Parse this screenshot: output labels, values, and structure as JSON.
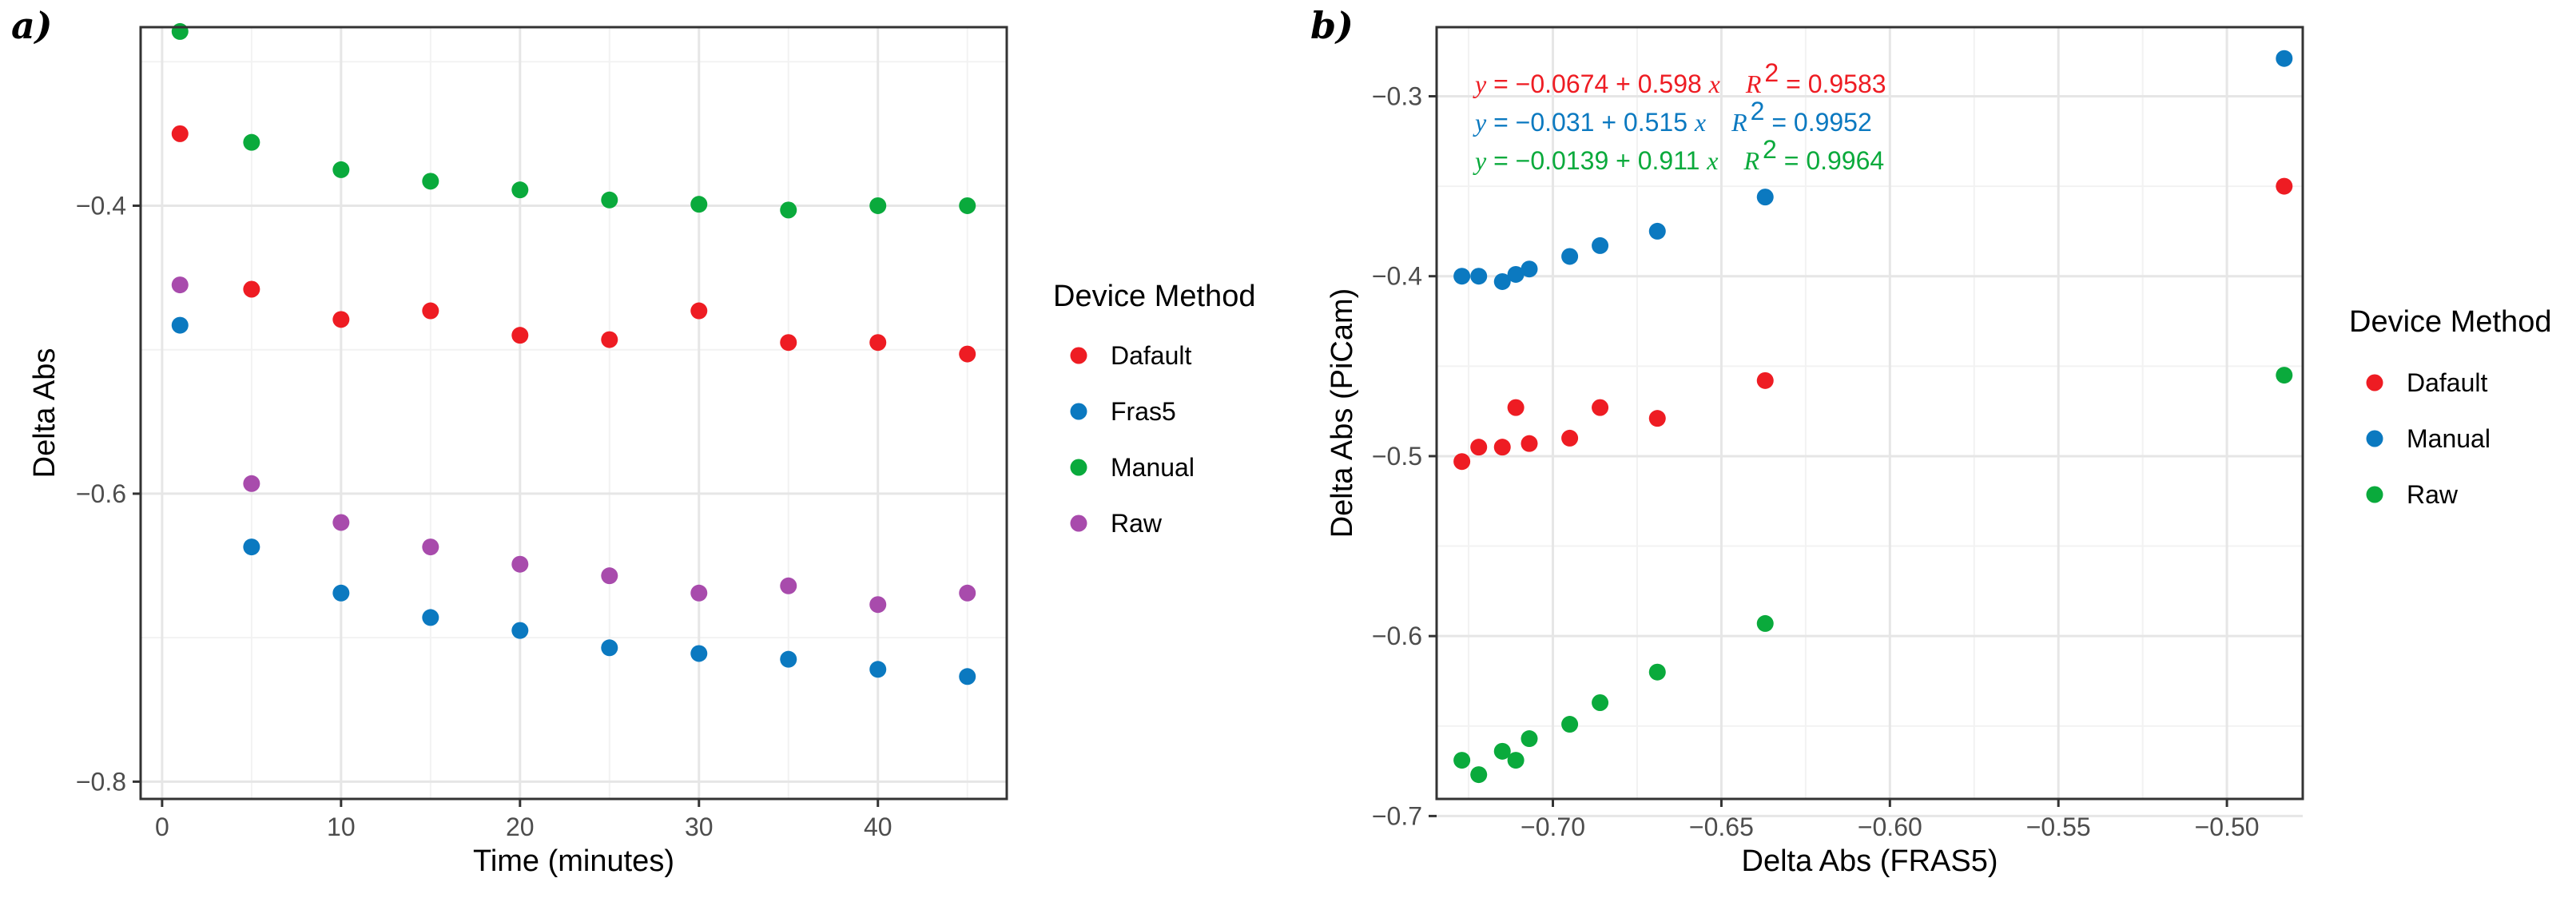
{
  "chart_data": [
    {
      "type": "scatter",
      "panel_label": "a)",
      "xlabel": "Time (minutes)",
      "ylabel": "Delta Abs",
      "xlim": [
        -1.2,
        47.2
      ],
      "ylim": [
        -0.812,
        -0.276
      ],
      "x_ticks": [
        0,
        10,
        20,
        30,
        40
      ],
      "y_ticks": [
        -0.8,
        -0.6,
        -0.4
      ],
      "y_tick_labels": [
        "−0.8",
        "−0.6",
        "−0.4"
      ],
      "grid": true,
      "legend": {
        "title": "Device Method",
        "position": "right"
      },
      "series": [
        {
          "name": "Dafault",
          "color": "#ee1c23",
          "x": [
            1,
            5,
            10,
            15,
            20,
            25,
            30,
            35,
            40,
            45
          ],
          "y": [
            -0.35,
            -0.458,
            -0.479,
            -0.473,
            -0.49,
            -0.493,
            -0.473,
            -0.495,
            -0.495,
            -0.503
          ]
        },
        {
          "name": "Fras5",
          "color": "#0b79c0",
          "x": [
            1,
            5,
            10,
            15,
            20,
            25,
            30,
            35,
            40,
            45
          ],
          "y": [
            -0.483,
            -0.637,
            -0.669,
            -0.686,
            -0.695,
            -0.707,
            -0.711,
            -0.715,
            -0.722,
            -0.727
          ]
        },
        {
          "name": "Manual",
          "color": "#0aaa3c",
          "x": [
            1,
            5,
            10,
            15,
            20,
            25,
            30,
            35,
            40,
            45
          ],
          "y": [
            -0.279,
            -0.356,
            -0.375,
            -0.383,
            -0.389,
            -0.396,
            -0.399,
            -0.403,
            -0.4,
            -0.4
          ]
        },
        {
          "name": "Raw",
          "color": "#a84bac",
          "x": [
            1,
            5,
            10,
            15,
            20
          ],
          "y": [
            -0.455,
            -0.593,
            -0.62,
            -0.637,
            -0.649
          ]
        },
        {
          "name": "Raw",
          "color": "#a84bac",
          "x": [
            25,
            30,
            35,
            40,
            45
          ],
          "y": [
            -0.657,
            -0.669,
            -0.664,
            -0.677,
            -0.669
          ]
        }
      ]
    },
    {
      "type": "scatter",
      "panel_label": "b)",
      "xlabel": "Delta Abs (FRAS5)",
      "ylabel": "Delta Abs (PiCam)",
      "xlim": [
        -0.7345,
        -0.4775
      ],
      "ylim": [
        -0.6905,
        -0.2616
      ],
      "x_ticks": [
        -0.7,
        -0.65,
        -0.6,
        -0.55,
        -0.5
      ],
      "x_tick_labels": [
        "−0.70",
        "−0.65",
        "−0.60",
        "−0.55",
        "−0.50"
      ],
      "y_ticks": [
        -0.7,
        -0.6,
        -0.5,
        -0.4,
        -0.3
      ],
      "y_tick_labels": [
        "−0.7",
        "−0.6",
        "−0.5",
        "−0.4",
        "−0.3"
      ],
      "grid": true,
      "legend": {
        "title": "Device Method",
        "position": "right"
      },
      "annotations": [
        {
          "series": "Dafault",
          "color": "#ee1c23",
          "y": "y",
          "eq": " = −0.0674 + 0.598 ",
          "x": "x",
          "r": "R",
          "r2": " = 0.9583"
        },
        {
          "series": "Manual",
          "color": "#0b79c0",
          "y": "y",
          "eq": " = −0.031 + 0.515 ",
          "x": "x",
          "r": "R",
          "r2": " = 0.9952"
        },
        {
          "series": "Raw",
          "color": "#0aaa3c",
          "y": "y",
          "eq": " = −0.0139 + 0.911 ",
          "x": "x",
          "r": "R",
          "r2": " = 0.9964"
        }
      ],
      "superscript": "2",
      "series": [
        {
          "name": "Dafault",
          "color": "#ee1c23",
          "x": [
            -0.727,
            -0.722,
            -0.715,
            -0.711,
            -0.707,
            -0.695,
            -0.686,
            -0.669,
            -0.637,
            -0.483
          ],
          "y": [
            -0.503,
            -0.495,
            -0.495,
            -0.473,
            -0.493,
            -0.49,
            -0.473,
            -0.479,
            -0.458,
            -0.35
          ]
        },
        {
          "name": "Manual",
          "color": "#0b79c0",
          "x": [
            -0.727,
            -0.722,
            -0.715,
            -0.711,
            -0.707,
            -0.695,
            -0.686,
            -0.669,
            -0.637,
            -0.483
          ],
          "y": [
            -0.4,
            -0.4,
            -0.403,
            -0.399,
            -0.396,
            -0.389,
            -0.383,
            -0.375,
            -0.356,
            -0.279
          ]
        },
        {
          "name": "Raw",
          "color": "#0aaa3c",
          "x": [
            -0.727,
            -0.722,
            -0.715,
            -0.711,
            -0.707,
            -0.695,
            -0.686,
            -0.669,
            -0.637,
            -0.483
          ],
          "y": [
            -0.669,
            -0.677,
            -0.664,
            -0.669,
            -0.657,
            -0.649,
            -0.637,
            -0.62,
            -0.593,
            -0.455
          ]
        }
      ]
    }
  ]
}
